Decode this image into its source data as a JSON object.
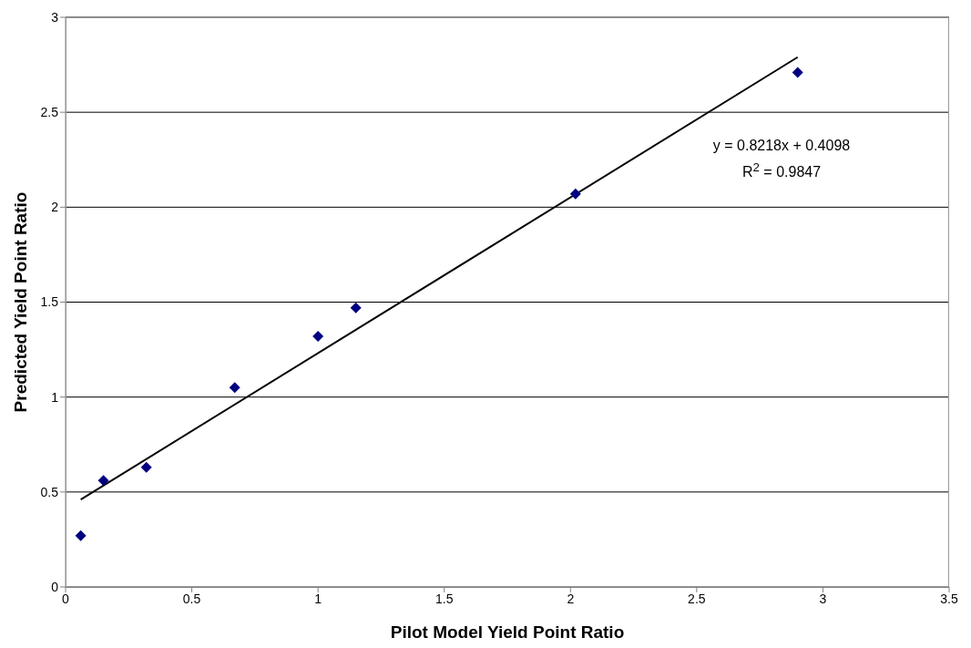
{
  "chart_data": {
    "type": "scatter",
    "xlabel": "Pilot Model Yield Point Ratio",
    "ylabel": "Predicted Yield Point Ratio",
    "series": [
      {
        "color": "#000080",
        "x": [
          0.06,
          0.15,
          0.32,
          0.67,
          1.0,
          1.15,
          2.02,
          2.9
        ],
        "values": [
          0.27,
          0.56,
          0.63,
          1.05,
          1.32,
          1.47,
          2.07,
          2.71
        ]
      },
      {
        "type": "line",
        "color": "#000000",
        "marker": "none",
        "x": [
          0.06,
          2.9
        ],
        "values": [
          0.46,
          2.79
        ]
      }
    ],
    "annotations": [
      "y = 0.8218x + 0.4098",
      "R$^{2}$ = 0.9847"
    ],
    "xlim": [
      0,
      3.5
    ],
    "xticks": [
      0,
      0.5,
      1,
      1.5,
      2,
      2.5,
      3,
      3.5
    ],
    "ylim": [
      0,
      3
    ],
    "yticks": [
      0,
      0.5,
      1,
      1.5,
      2,
      2.5,
      3
    ],
    "grid": "y",
    "marker": "diamond",
    "legend": false
  }
}
